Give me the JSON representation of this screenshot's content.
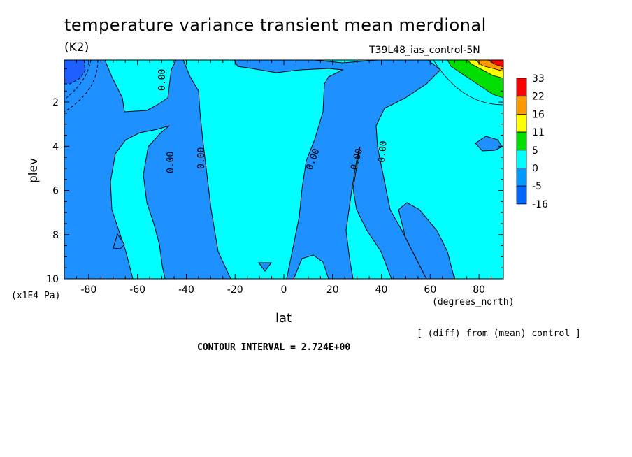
{
  "chart_data": {
    "type": "contour",
    "title": "temperature variance transient mean merdional",
    "units": "(K2)",
    "run_label": "T39L48_ias_control-5N",
    "xlabel": "lat",
    "x_units": "(degrees_north)",
    "ylabel": "plev",
    "y_units": "(x1E4 Pa)",
    "x_ticks": [
      -80,
      -60,
      -40,
      -20,
      0,
      20,
      40,
      60,
      80
    ],
    "y_ticks": [
      2,
      4,
      6,
      8,
      10
    ],
    "xlim": [
      -90,
      90
    ],
    "ylim": [
      10,
      0.1
    ],
    "diff_note": "[ (diff) from (mean) control ]",
    "contour_interval": "CONTOUR INTERVAL = 2.724E+00",
    "contour_labels": [
      "0.00",
      "0.00",
      "0.00",
      "0.00",
      "0.00",
      "0.00",
      "0.00"
    ],
    "colorbar": {
      "levels": [
        "33",
        "22",
        "16",
        "11",
        "5",
        "0",
        "-5",
        "-16"
      ],
      "colors": [
        "#ff0000",
        "#ff9900",
        "#ffff00",
        "#00dd00",
        "#00ffff",
        "#0099ff",
        "#0066ff"
      ]
    },
    "colors": {
      "negative": "#1e90ff",
      "positive": "#00ffff",
      "strong_negative": "#1e60ff"
    },
    "grid": false
  }
}
